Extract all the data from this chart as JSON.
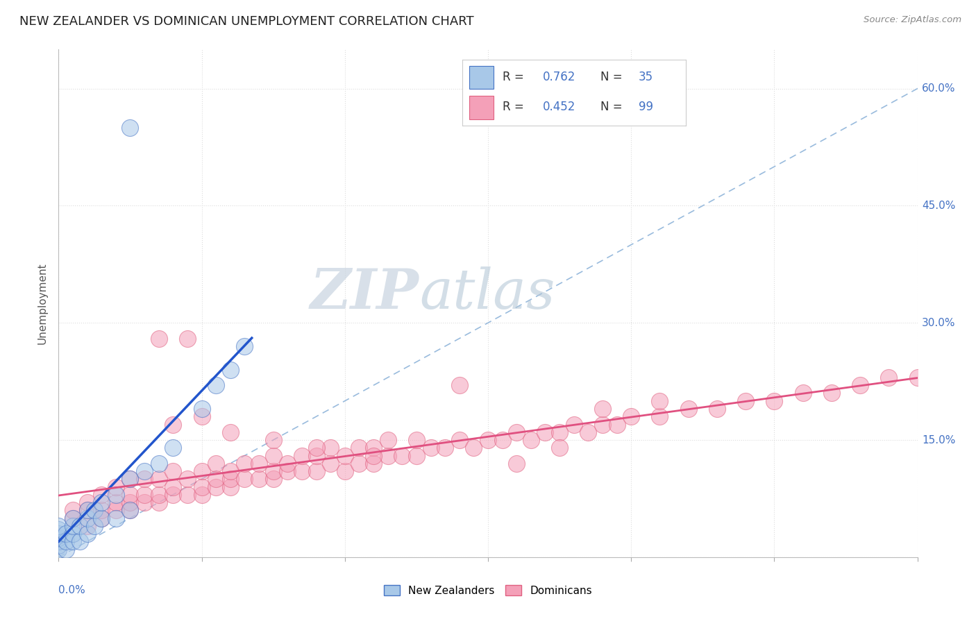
{
  "title": "NEW ZEALANDER VS DOMINICAN UNEMPLOYMENT CORRELATION CHART",
  "source": "Source: ZipAtlas.com",
  "ylabel": "Unemployment",
  "xmin": 0.0,
  "xmax": 0.6,
  "ymin": 0.0,
  "ymax": 0.65,
  "legend_r1": "R = 0.762",
  "legend_n1": "N = 35",
  "legend_r2": "R = 0.452",
  "legend_n2": "N = 99",
  "blue_fill": "#a8c8e8",
  "blue_edge": "#4472c4",
  "pink_fill": "#f4a0b8",
  "pink_edge": "#e06080",
  "blue_line": "#2255cc",
  "pink_line": "#e05080",
  "diag_color": "#99bbdd",
  "title_color": "#222222",
  "source_color": "#888888",
  "ylabel_color": "#555555",
  "right_label_color": "#4472c4",
  "watermark_zip_color": "#c8d8e8",
  "watermark_atlas_color": "#b0c8d8",
  "background": "#ffffff",
  "grid_color": "#dddddd",
  "nz_x": [
    0.0,
    0.0,
    0.0,
    0.0,
    0.0,
    0.0,
    0.0,
    0.005,
    0.005,
    0.005,
    0.01,
    0.01,
    0.01,
    0.01,
    0.015,
    0.015,
    0.02,
    0.02,
    0.02,
    0.025,
    0.025,
    0.03,
    0.03,
    0.04,
    0.04,
    0.05,
    0.05,
    0.06,
    0.07,
    0.08,
    0.1,
    0.11,
    0.12,
    0.13,
    0.05
  ],
  "nz_y": [
    0.01,
    0.015,
    0.02,
    0.025,
    0.03,
    0.035,
    0.04,
    0.01,
    0.02,
    0.03,
    0.02,
    0.03,
    0.04,
    0.05,
    0.02,
    0.04,
    0.03,
    0.05,
    0.06,
    0.04,
    0.06,
    0.05,
    0.07,
    0.05,
    0.08,
    0.06,
    0.1,
    0.11,
    0.12,
    0.14,
    0.19,
    0.22,
    0.24,
    0.27,
    0.55
  ],
  "dom_x": [
    0.01,
    0.01,
    0.02,
    0.02,
    0.02,
    0.03,
    0.03,
    0.03,
    0.04,
    0.04,
    0.04,
    0.05,
    0.05,
    0.05,
    0.05,
    0.06,
    0.06,
    0.06,
    0.07,
    0.07,
    0.07,
    0.08,
    0.08,
    0.08,
    0.09,
    0.09,
    0.1,
    0.1,
    0.1,
    0.11,
    0.11,
    0.11,
    0.12,
    0.12,
    0.12,
    0.13,
    0.13,
    0.14,
    0.14,
    0.15,
    0.15,
    0.15,
    0.16,
    0.16,
    0.17,
    0.17,
    0.18,
    0.18,
    0.19,
    0.19,
    0.2,
    0.2,
    0.21,
    0.21,
    0.22,
    0.22,
    0.23,
    0.23,
    0.24,
    0.25,
    0.26,
    0.27,
    0.28,
    0.29,
    0.3,
    0.31,
    0.32,
    0.33,
    0.34,
    0.35,
    0.36,
    0.37,
    0.38,
    0.39,
    0.4,
    0.42,
    0.44,
    0.46,
    0.48,
    0.5,
    0.52,
    0.54,
    0.56,
    0.58,
    0.6,
    0.08,
    0.1,
    0.12,
    0.15,
    0.18,
    0.22,
    0.25,
    0.28,
    0.32,
    0.35,
    0.38,
    0.42,
    0.07,
    0.09
  ],
  "dom_y": [
    0.05,
    0.06,
    0.04,
    0.06,
    0.07,
    0.05,
    0.06,
    0.08,
    0.06,
    0.07,
    0.09,
    0.06,
    0.07,
    0.08,
    0.1,
    0.07,
    0.08,
    0.1,
    0.07,
    0.08,
    0.1,
    0.08,
    0.09,
    0.11,
    0.08,
    0.1,
    0.08,
    0.09,
    0.11,
    0.09,
    0.1,
    0.12,
    0.09,
    0.1,
    0.11,
    0.1,
    0.12,
    0.1,
    0.12,
    0.1,
    0.11,
    0.13,
    0.11,
    0.12,
    0.11,
    0.13,
    0.11,
    0.13,
    0.12,
    0.14,
    0.11,
    0.13,
    0.12,
    0.14,
    0.12,
    0.14,
    0.13,
    0.15,
    0.13,
    0.13,
    0.14,
    0.14,
    0.15,
    0.14,
    0.15,
    0.15,
    0.16,
    0.15,
    0.16,
    0.16,
    0.17,
    0.16,
    0.17,
    0.17,
    0.18,
    0.18,
    0.19,
    0.19,
    0.2,
    0.2,
    0.21,
    0.21,
    0.22,
    0.23,
    0.23,
    0.17,
    0.18,
    0.16,
    0.15,
    0.14,
    0.13,
    0.15,
    0.22,
    0.12,
    0.14,
    0.19,
    0.2,
    0.28,
    0.28
  ]
}
